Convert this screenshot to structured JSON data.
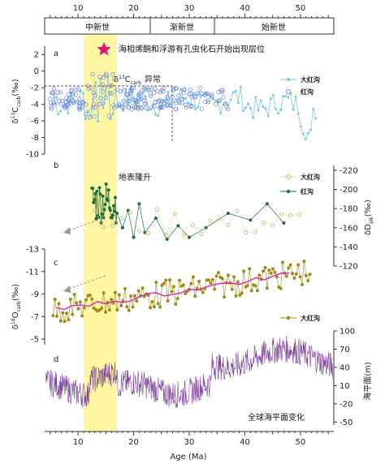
{
  "chart_data": {
    "type": "line",
    "x_axis": {
      "label": "Age (Ma)",
      "range": [
        4,
        56
      ],
      "ticks": [
        10,
        20,
        30,
        40,
        50
      ]
    },
    "epochs": [
      {
        "name": "中新世",
        "from": 4,
        "to": 23
      },
      {
        "name": "渐新世",
        "from": 23,
        "to": 34
      },
      {
        "name": "始新世",
        "from": 34,
        "to": 56
      }
    ],
    "highlight": {
      "from": 11,
      "to": 17,
      "color": "#fff59a"
    },
    "star_label": "海相烯酮和浮游有孔虫化石开始出现层位",
    "panels": [
      {
        "letter": "a",
        "ylabel": "δ13Ccarb(‰)",
        "ylim": [
          -10,
          3
        ],
        "yticks": [
          2,
          0,
          -2,
          -4,
          -6,
          -8,
          -10
        ],
        "annotation": "δ13Ccarb 异常",
        "threshold": -1.3,
        "series": [
          {
            "name": "大红沟",
            "color": "#7ec8e3",
            "style": "line+dot"
          },
          {
            "name": "红沟",
            "color": "#6a86d8",
            "style": "circle"
          }
        ]
      },
      {
        "letter": "b",
        "ylabel": "δDalk(‰)",
        "ylim": [
          -120,
          -225
        ],
        "yticks": [
          -220,
          -200,
          -180,
          -160,
          -140,
          -120
        ],
        "annotation": "地表隆升",
        "series": [
          {
            "name": "大红沟",
            "color": "#d8d8a0",
            "style": "line+circle"
          },
          {
            "name": "红沟",
            "color": "#1e6e3a",
            "style": "line+dot"
          }
        ]
      },
      {
        "letter": "c",
        "ylabel": "δ18Ocarb(‰)",
        "ylim": [
          -4.5,
          -13
        ],
        "yticks": [
          -13,
          -11,
          -9,
          -7,
          -5
        ],
        "series": [
          {
            "name": "大红沟",
            "color": "#a08a1e",
            "style": "line+dot"
          }
        ],
        "trend_color": "#d62ca8"
      },
      {
        "letter": "d",
        "ylabel": "海平面(m)",
        "ylim": [
          -55,
          100
        ],
        "yticks": [
          100,
          70,
          40,
          10,
          -20,
          -50
        ],
        "annotation": "全球海平面变化",
        "series": [
          {
            "name": "",
            "color": "#7b3f98",
            "style": "line"
          }
        ]
      }
    ]
  },
  "legend": {
    "a_big": "大红沟",
    "a_hong": "红沟",
    "b_big": "大红沟",
    "b_hong": "红沟",
    "c_big": "大红沟"
  },
  "labels": {
    "xaxis": "Age (Ma)",
    "a_ylabel_pre": "δ",
    "a_ylabel_sup": "13",
    "a_ylabel_main": "C",
    "a_ylabel_sub": "carb",
    "a_ylabel_unit": "(‰)",
    "a_anno_pre": "δ",
    "a_anno_sup": "13",
    "a_anno_main": "C",
    "a_anno_sub": "carb",
    "a_anno_post": "异常",
    "b_ylabel_pre": "δD",
    "b_ylabel_sub": "alk",
    "b_ylabel_unit": "(‰)",
    "c_ylabel_pre": "δ",
    "c_ylabel_sup": "18",
    "c_ylabel_main": "O",
    "c_ylabel_sub": "carb",
    "c_ylabel_unit": "(‰)",
    "d_ylabel": "海平面(m)",
    "b_anno": "地表隆升",
    "d_anno": "全球海平面变化",
    "letter_a": "a",
    "letter_b": "b",
    "letter_c": "c",
    "letter_d": "d",
    "epoch_1": "中新世",
    "epoch_2": "渐新世",
    "epoch_3": "始新世",
    "star": "海相烯酮和浮游有孔虫化石开始出现层位"
  }
}
